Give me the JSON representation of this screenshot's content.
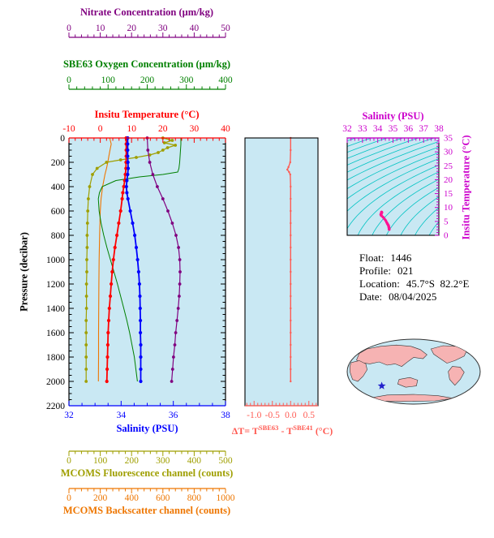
{
  "figure": {
    "bg": "#ffffff",
    "plot_bg": "#c9e8f3"
  },
  "info": {
    "float_label": "Float:",
    "float_value": "1446",
    "profile_label": "Profile:",
    "profile_value": "021",
    "location_label": "Location:",
    "location_value": "45.7°S  82.2°E",
    "date_label": "Date:",
    "date_value": "08/04/2025"
  },
  "map": {
    "ocean": "#c9e8f3",
    "land": "#f6b3b3",
    "outline": "#333333",
    "star_color": "#2222cc",
    "star": {
      "fx": 0.26,
      "fy": 0.72
    }
  },
  "chart_data": [
    {
      "id": "main_profile",
      "type": "line",
      "ylabel": "Pressure (decibar)",
      "ylim": [
        0,
        2200
      ],
      "yticks": [
        0,
        200,
        400,
        600,
        800,
        1000,
        1200,
        1400,
        1600,
        1800,
        2000,
        2200
      ],
      "grid": false,
      "legend": "none",
      "axes": [
        {
          "key": "nitrate",
          "label": "Nitrate Concentration (μm/kg)",
          "color": "#800080",
          "lim": [
            0,
            50
          ],
          "ticks": [
            0,
            10,
            20,
            30,
            40,
            50
          ],
          "mdiv": 5,
          "side": "top"
        },
        {
          "key": "oxygen",
          "label": "SBE63 Oxygen Concentration (μm/kg)",
          "color": "#008000",
          "lim": [
            0,
            400
          ],
          "ticks": [
            0,
            100,
            200,
            300,
            400
          ],
          "mdiv": 5,
          "side": "top"
        },
        {
          "key": "temperature",
          "label": "Insitu Temperature (°C)",
          "color": "#ff0000",
          "lim": [
            -10,
            40
          ],
          "ticks": [
            -10,
            0,
            10,
            20,
            30,
            40
          ],
          "mdiv": 5,
          "side": "top"
        },
        {
          "key": "salinity",
          "label": "Salinity (PSU)",
          "color": "#0000ff",
          "lim": [
            32,
            38
          ],
          "ticks": [
            32,
            34,
            36,
            38
          ],
          "mdiv": 4,
          "side": "bottom"
        },
        {
          "key": "fluorescence",
          "label": "MCOMS Fluorescence channel (counts)",
          "color": "#9f9f00",
          "lim": [
            0,
            500
          ],
          "ticks": [
            0,
            100,
            200,
            300,
            400,
            500
          ],
          "mdiv": 5,
          "side": "bottom"
        },
        {
          "key": "backscatter",
          "label": "MCOMS Backscatter channel (counts)",
          "color": "#ee7600",
          "lim": [
            0,
            1000
          ],
          "ticks": [
            0,
            200,
            400,
            600,
            800,
            1000
          ],
          "mdiv": 5,
          "side": "bottom"
        }
      ],
      "series": [
        {
          "name": "backscatter",
          "axis": "backscatter",
          "color": "#ee7600",
          "marker": false,
          "width": 1.1,
          "p": [
            0,
            50,
            100,
            150,
            200,
            250,
            300,
            400,
            500,
            600,
            800,
            1000,
            1200,
            1400,
            1600,
            1800,
            2000
          ],
          "v": [
            260,
            270,
            262,
            255,
            248,
            240,
            230,
            215,
            205,
            200,
            196,
            193,
            191,
            190,
            189,
            189,
            188
          ]
        },
        {
          "name": "fluorescence",
          "axis": "fluorescence",
          "color": "#9f9f00",
          "marker": true,
          "width": 1.2,
          "p": [
            0,
            20,
            40,
            60,
            80,
            100,
            120,
            140,
            160,
            180,
            200,
            250,
            300,
            400,
            500,
            600,
            700,
            800,
            900,
            1000,
            1100,
            1200,
            1300,
            1400,
            1500,
            1600,
            1700,
            1800,
            1900,
            2000
          ],
          "v": [
            300,
            330,
            305,
            340,
            315,
            300,
            285,
            258,
            215,
            165,
            120,
            90,
            75,
            66,
            62,
            60,
            59,
            58,
            58,
            57,
            57,
            56,
            56,
            56,
            55,
            55,
            55,
            55,
            55,
            55
          ]
        },
        {
          "name": "oxygen",
          "axis": "oxygen",
          "color": "#008000",
          "marker": false,
          "width": 1.0,
          "p": [
            0,
            50,
            100,
            150,
            200,
            250,
            280,
            300,
            320,
            350,
            400,
            450,
            500,
            600,
            700,
            800,
            900,
            1000,
            1100,
            1200,
            1300,
            1400,
            1500,
            1600,
            1700,
            1800,
            1900,
            2000
          ],
          "v": [
            286,
            286,
            285,
            284,
            283,
            281,
            278,
            240,
            180,
            120,
            85,
            78,
            75,
            77,
            82,
            89,
            97,
            106,
            115,
            124,
            132,
            140,
            148,
            155,
            161,
            167,
            171,
            175
          ]
        },
        {
          "name": "nitrate",
          "axis": "nitrate",
          "color": "#800080",
          "marker": true,
          "width": 1.2,
          "p": [
            0,
            100,
            200,
            300,
            400,
            500,
            600,
            700,
            800,
            900,
            1000,
            1100,
            1200,
            1300,
            1400,
            1500,
            1600,
            1700,
            1800,
            1900,
            2000
          ],
          "v": [
            25.0,
            25.2,
            25.8,
            26.8,
            28.2,
            30.0,
            31.6,
            33.0,
            34.2,
            35.0,
            35.4,
            35.5,
            35.4,
            35.2,
            34.9,
            34.5,
            34.1,
            33.8,
            33.4,
            33.1,
            32.8
          ]
        },
        {
          "name": "temperature",
          "axis": "temperature",
          "color": "#ff0000",
          "marker": true,
          "width": 1.8,
          "p": [
            0,
            50,
            100,
            150,
            200,
            250,
            300,
            350,
            400,
            450,
            500,
            600,
            700,
            800,
            900,
            1000,
            1100,
            1200,
            1300,
            1400,
            1500,
            1600,
            1700,
            1800,
            1900,
            2000
          ],
          "v": [
            8.3,
            8.3,
            8.3,
            8.3,
            8.25,
            8.2,
            8.0,
            7.8,
            7.5,
            7.2,
            7.0,
            6.5,
            5.9,
            5.3,
            4.7,
            4.2,
            3.8,
            3.5,
            3.2,
            2.9,
            2.7,
            2.5,
            2.4,
            2.3,
            2.2,
            2.1
          ]
        },
        {
          "name": "salinity",
          "axis": "salinity",
          "color": "#0000ff",
          "marker": true,
          "width": 1.8,
          "p": [
            0,
            50,
            100,
            150,
            200,
            250,
            300,
            350,
            400,
            450,
            500,
            600,
            700,
            800,
            900,
            1000,
            1100,
            1200,
            1300,
            1400,
            1500,
            1600,
            1700,
            1800,
            1900,
            2000
          ],
          "v": [
            34.25,
            34.25,
            34.25,
            34.25,
            34.26,
            34.27,
            34.25,
            34.22,
            34.2,
            34.22,
            34.26,
            34.35,
            34.44,
            34.52,
            34.58,
            34.63,
            34.67,
            34.7,
            34.72,
            34.73,
            34.74,
            34.74,
            34.75,
            34.75,
            34.75,
            34.75
          ]
        }
      ]
    },
    {
      "id": "delta_t",
      "type": "line",
      "title_parts": {
        "pre": "ΔT= T",
        "sup1": "SBE63",
        "mid": " - T",
        "sup2": "SBE41",
        "post": " (°C)"
      },
      "color": "#ff5a52",
      "xlim": [
        -1.25,
        0.75
      ],
      "xticks": [
        -1.0,
        -0.5,
        0.0,
        0.5
      ],
      "xtick_labels": [
        "-1.0",
        "-0.5",
        "0.0",
        "0.5"
      ],
      "ylim": [
        0,
        2200
      ],
      "series": [
        {
          "name": "delta_t",
          "color": "#ff5a52",
          "marker": true,
          "width": 1.4,
          "p": [
            0,
            100,
            200,
            240,
            260,
            280,
            300,
            400,
            500,
            600,
            700,
            800,
            900,
            1000,
            1100,
            1200,
            1300,
            1400,
            1500,
            1600,
            1700,
            1800,
            1900,
            2000
          ],
          "v": [
            0.0,
            0.0,
            -0.01,
            -0.06,
            -0.09,
            -0.04,
            -0.01,
            0.0,
            0.0,
            0.0,
            0.0,
            0.0,
            0.0,
            0.0,
            0.0,
            0.0,
            0.0,
            0.0,
            0.0,
            0.0,
            0.0,
            0.0,
            0.0,
            0.0
          ]
        }
      ]
    },
    {
      "id": "ts_diagram",
      "type": "line",
      "xlabel": "Salinity (PSU)",
      "xlim": [
        32,
        38
      ],
      "xticks": [
        32,
        33,
        34,
        35,
        36,
        37,
        38
      ],
      "ylabel": "Insitu Temperature (°C)",
      "ylim": [
        0,
        35
      ],
      "yticks": [
        0,
        5,
        10,
        15,
        20,
        25,
        30,
        35
      ],
      "axis_color": "#cc00cc",
      "contour_color": "#00c3c3",
      "curve_color": "#ff1493",
      "note": "temperature-salinity curve over isopycnal contours; curve built from salinity and temperature series of main_profile"
    }
  ]
}
